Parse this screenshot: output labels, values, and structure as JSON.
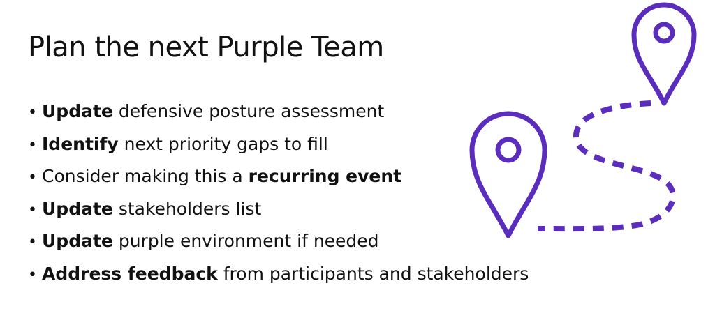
{
  "title": "Plan the next Purple Team",
  "bullet_glyph": "•",
  "bullets": [
    {
      "bold": "Update",
      "before": "",
      "after": " defensive posture assessment"
    },
    {
      "bold": "Identify",
      "before": "",
      "after": " next priority gaps to fill"
    },
    {
      "bold": "recurring event",
      "before": "Consider making this a ",
      "after": ""
    },
    {
      "bold": "Update",
      "before": "",
      "after": " stakeholders list"
    },
    {
      "bold": "Update",
      "before": "",
      "after": " purple environment if needed"
    },
    {
      "bold": "Address feedback",
      "before": "",
      "after": " from participants and stakeholders"
    }
  ],
  "illustration": {
    "icons": [
      "map-pin-icon",
      "map-pin-icon",
      "dashed-path"
    ],
    "accent_color": "#5b2dbd"
  }
}
